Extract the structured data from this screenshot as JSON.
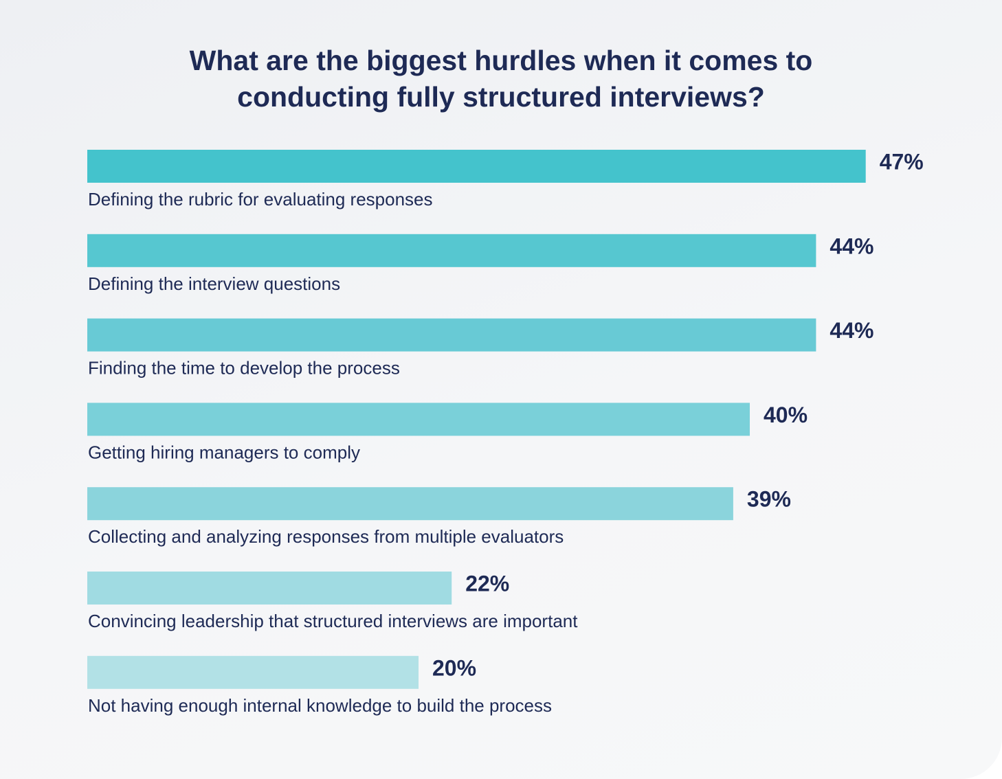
{
  "chart_data": {
    "type": "bar",
    "orientation": "horizontal",
    "title": "What are the biggest hurdles when it comes to conducting fully structured interviews?",
    "categories": [
      "Defining the rubric for evaluating responses",
      "Defining the interview questions",
      "Finding the time to develop the process",
      "Getting hiring managers to comply",
      "Collecting and analyzing responses from multiple evaluators",
      "Convincing leadership that structured interviews are important",
      "Not having enough internal knowledge to build the process"
    ],
    "values": [
      47,
      44,
      44,
      40,
      39,
      22,
      20
    ],
    "value_labels": [
      "47%",
      "44%",
      "44%",
      "40%",
      "39%",
      "22%",
      "20%"
    ],
    "colors": [
      "#44c3cc",
      "#56c7d0",
      "#68cad5",
      "#7ad0d9",
      "#8bd4dc",
      "#a0dbe2",
      "#b2e1e6"
    ]
  }
}
